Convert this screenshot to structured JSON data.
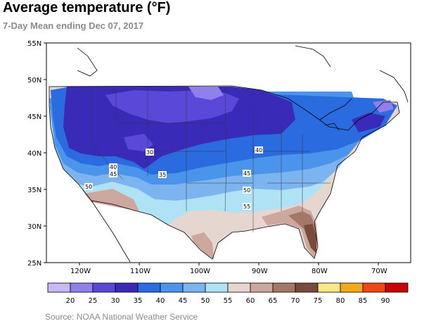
{
  "header": {
    "title": "Average temperature (°F)",
    "subtitle": "7-Day Mean ending Dec 07, 2017"
  },
  "map": {
    "lat_labels": [
      "55N",
      "50N",
      "45N",
      "40N",
      "35N",
      "30N",
      "25N"
    ],
    "lon_labels": [
      "120W",
      "110W",
      "100W",
      "90W",
      "80W",
      "70W"
    ],
    "contour_labels": [
      "30",
      "40",
      "40",
      "45",
      "35",
      "45",
      "50",
      "50",
      "55"
    ]
  },
  "legend": {
    "colors": [
      "#c7b8f5",
      "#9080ec",
      "#5a48d8",
      "#3a2ab8",
      "#2a6ce0",
      "#4a94ec",
      "#7cb4f0",
      "#b0e2f6",
      "#e6d6d0",
      "#cca79e",
      "#a47868",
      "#7a4a3c",
      "#fbe88a",
      "#f4a81c",
      "#ee4814",
      "#c40808"
    ],
    "labels": [
      "20",
      "25",
      "30",
      "35",
      "40",
      "45",
      "50",
      "55",
      "60",
      "65",
      "70",
      "75",
      "80",
      "85",
      "90"
    ]
  },
  "footer": {
    "source": "Source: NOAA National Weather Service"
  }
}
